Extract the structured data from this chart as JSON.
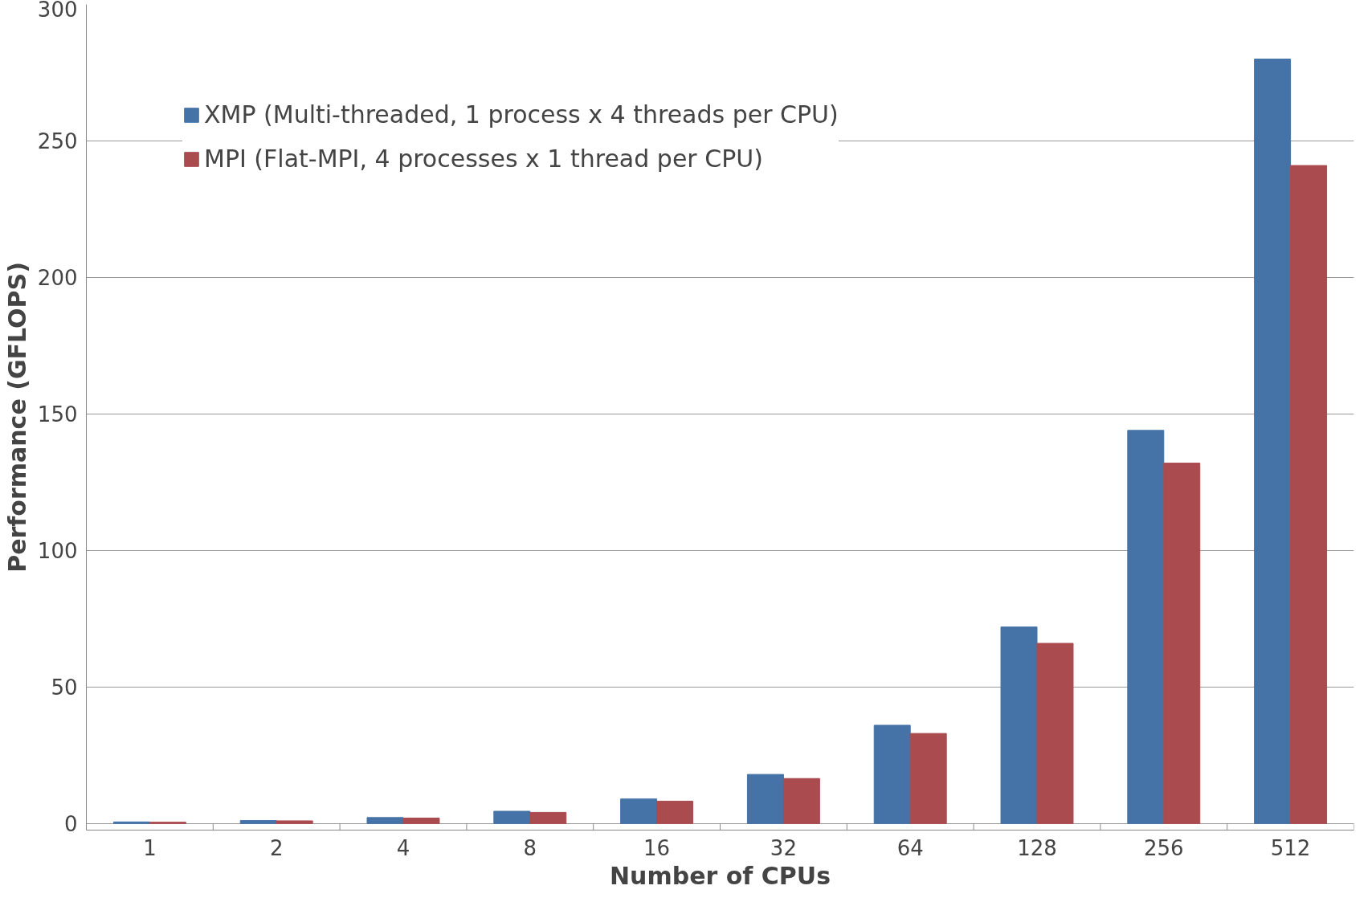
{
  "chart_data": {
    "type": "bar",
    "xlabel": "Number of CPUs",
    "ylabel": "Performance (GFLOPS)",
    "categories": [
      "1",
      "2",
      "4",
      "8",
      "16",
      "32",
      "64",
      "128",
      "256",
      "512"
    ],
    "series": [
      {
        "name": "XMP (Multi-threaded, 1 process x 4 threads per CPU)",
        "color": "#4573a7",
        "values": [
          0.6,
          1.1,
          2.2,
          4.5,
          9,
          18,
          36,
          72,
          144,
          280
        ]
      },
      {
        "name": "MPI (Flat-MPI, 4 processes x 1 thread per CPU)",
        "color": "#aa4b50",
        "values": [
          0.5,
          1,
          2,
          4.1,
          8.2,
          16.5,
          33,
          66,
          132,
          241
        ]
      }
    ],
    "ylim": [
      0,
      300
    ],
    "yticks": [
      0,
      50,
      100,
      150,
      200,
      250,
      300
    ],
    "grid": "y",
    "legend": "top left"
  }
}
